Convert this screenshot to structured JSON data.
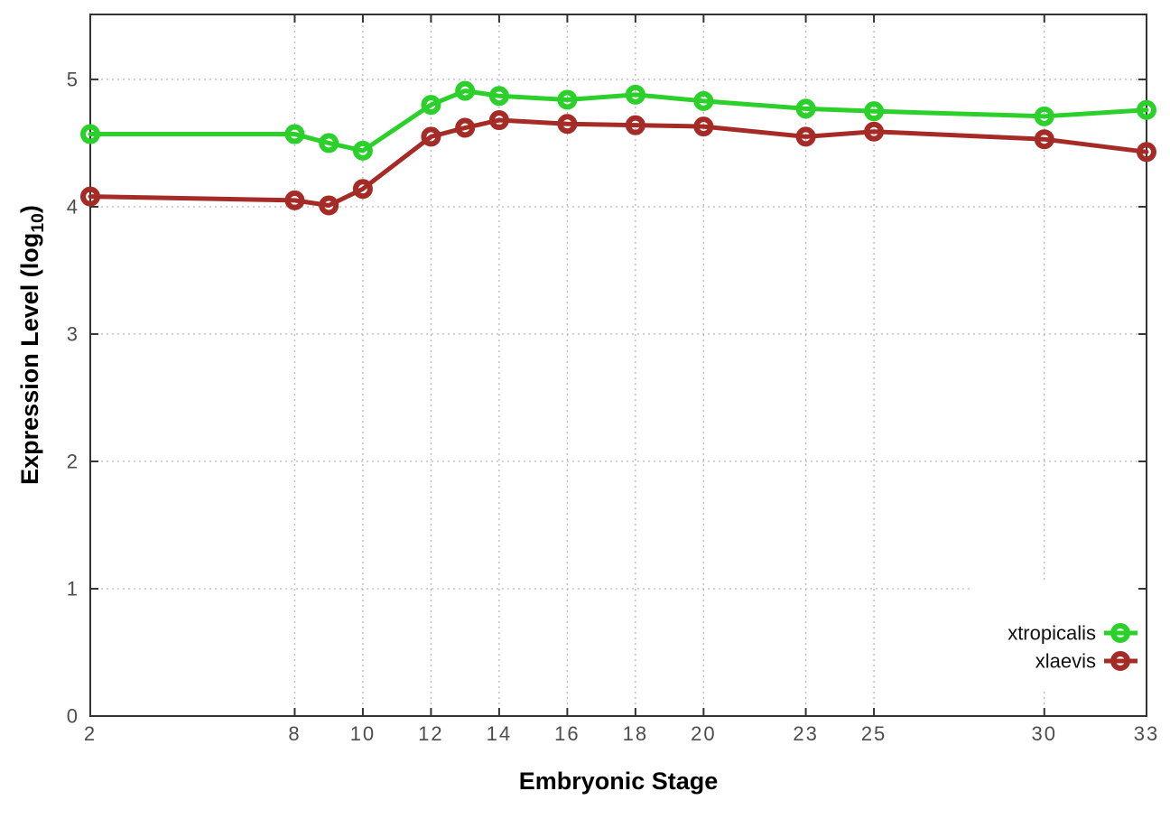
{
  "chart_data": {
    "type": "line",
    "x": [
      2,
      8,
      9,
      10,
      12,
      13,
      14,
      16,
      18,
      20,
      23,
      25,
      30,
      33
    ],
    "series": [
      {
        "name": "xtropicalis",
        "color": "#2bd02b",
        "values": [
          4.57,
          4.57,
          4.5,
          4.44,
          4.8,
          4.91,
          4.87,
          4.84,
          4.88,
          4.83,
          4.77,
          4.75,
          4.71,
          4.76
        ]
      },
      {
        "name": "xlaevis",
        "color": "#a42b26",
        "values": [
          4.08,
          4.05,
          4.01,
          4.14,
          4.55,
          4.62,
          4.68,
          4.65,
          4.64,
          4.63,
          4.55,
          4.59,
          4.53,
          4.43
        ]
      }
    ],
    "title": "",
    "xlabel": "Embryonic Stage",
    "ylabel": {
      "prefix": "Expression Level (log",
      "sub": "10",
      "suffix": ")"
    },
    "x_ticks": [
      2,
      8,
      10,
      12,
      14,
      16,
      18,
      20,
      23,
      25,
      30,
      33
    ],
    "y_ticks": [
      0,
      1,
      2,
      3,
      4,
      5
    ],
    "xlim": [
      2,
      33
    ],
    "ylim": [
      0,
      5.51
    ],
    "grid": true,
    "legend_position": "inside-bottom-right",
    "marker": "open-circle"
  },
  "style": {
    "border_color": "#333333",
    "grid_color": "#bdbdbd",
    "tick_text_color": "#4d4d4d",
    "legend_text_color": "#111111",
    "background": "#ffffff"
  }
}
